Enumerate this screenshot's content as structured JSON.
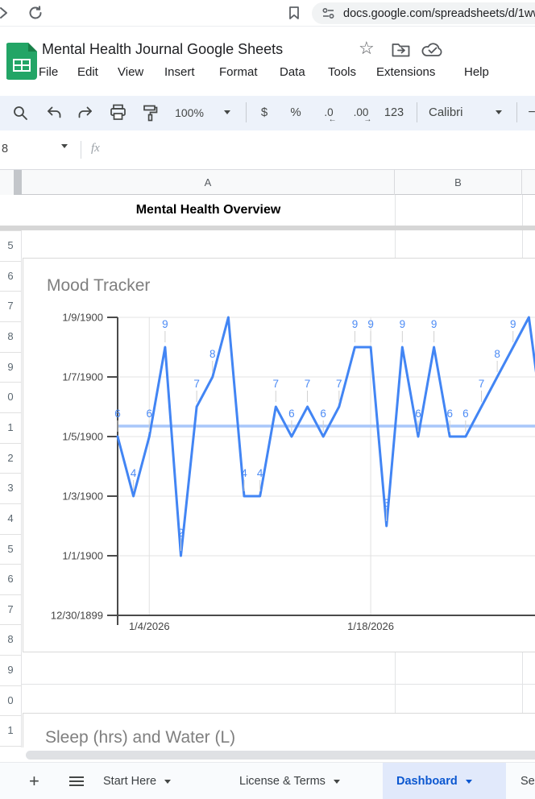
{
  "browser": {
    "url": "docs.google.com/spreadsheets/d/1wwi",
    "icons": {
      "forward": "chevron-right",
      "reload": "reload-circle",
      "bookmark": "bookmark-outline",
      "site_controls": "tune-sliders"
    }
  },
  "header": {
    "title": "Mental Health Journal Google Sheets",
    "menu": [
      "File",
      "Edit",
      "View",
      "Insert",
      "Format",
      "Data",
      "Tools",
      "Extensions",
      "Help"
    ],
    "icons": {
      "star": "☆",
      "move_folder": "folder-move",
      "cloud": "cloud-check"
    }
  },
  "toolbar": {
    "zoom": "100%",
    "currency": "$",
    "percent": "%",
    "decrease_decimal": ".0",
    "decrease_decimal_arrow": "←",
    "increase_decimal": ".00",
    "increase_decimal_arrow": "→",
    "number_format": "123",
    "font_name": "Calibri",
    "font_size_minus": "−"
  },
  "formula_bar": {
    "name_box": "8",
    "fx": "fx"
  },
  "sheet": {
    "col_headers": [
      "A",
      "B",
      ""
    ],
    "overview_cell": "Mental Health Overview",
    "row_digits": [
      "5",
      "6",
      "7",
      "8",
      "9",
      "0",
      "1",
      "2",
      "3",
      "4",
      "5",
      "6",
      "7",
      "8",
      "9",
      "0",
      "1"
    ]
  },
  "charts": [
    {
      "chart_data": {
        "type": "line",
        "title": "Mood Tracker",
        "values": [
          6,
          4,
          6,
          9,
          2,
          7,
          8,
          10,
          4,
          4,
          7,
          6,
          7,
          6,
          7,
          9,
          9,
          3,
          9,
          6,
          9,
          6,
          6,
          7,
          8,
          9,
          10
        ],
        "point_labels": [
          "6",
          "4",
          "6",
          "9",
          "2",
          "7",
          "8",
          null,
          "4",
          "4",
          "7",
          "6",
          "7",
          "6",
          "7",
          "9",
          "9",
          "3",
          "9",
          "6",
          "9",
          "6",
          "6",
          "7",
          "8",
          "9",
          null
        ],
        "offscreen_tail_value": 6,
        "x_tick_labels": [
          "1/4/2026",
          "1/18/2026"
        ],
        "x_tick_indices": [
          2,
          16
        ],
        "y_tick_labels": [
          "1/9/1900",
          "1/7/1900",
          "1/5/1900",
          "1/3/1900",
          "1/1/1900",
          "12/30/1899"
        ],
        "y_tick_values": [
          10,
          8,
          6,
          4,
          2,
          0
        ],
        "ylim": [
          0,
          10
        ],
        "average_line_value": 6.35,
        "series_color": "#4285f4",
        "average_line_color": "#a8c7fa",
        "grid": true,
        "legend_position": "none"
      }
    },
    {
      "chart_data": {
        "type": "line",
        "title": "Sleep (hrs) and Water (L)",
        "clipped": true
      }
    }
  ],
  "sheet_tabs": {
    "add_button": "+",
    "all_sheets_button": "≡",
    "tabs": [
      {
        "label": "Start Here",
        "active": false
      },
      {
        "label": "License & Terms",
        "active": false
      },
      {
        "label": "Dashboard",
        "active": true
      },
      {
        "label": "Se",
        "active": false,
        "clipped": true
      }
    ]
  },
  "colors": {
    "series_blue": "#4285f4",
    "average_blue": "#a8c7fa",
    "active_tab_text": "#0b57d0",
    "active_tab_bg": "#e1e9fb",
    "sheets_green": "#23a566",
    "toolbar_pill": "#edf2fa"
  }
}
